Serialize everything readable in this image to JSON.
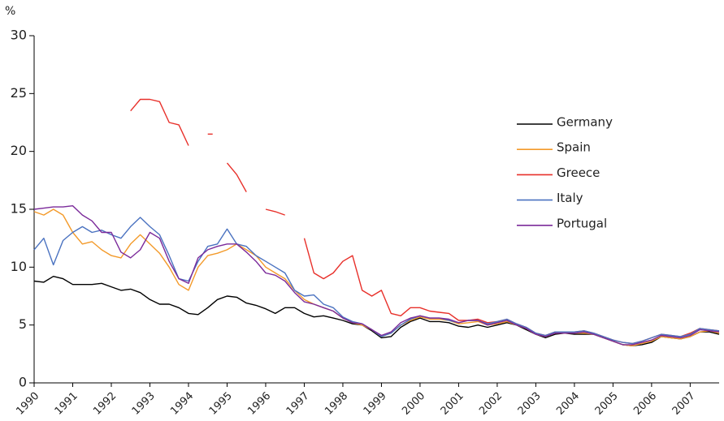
{
  "chart_data": {
    "type": "line",
    "y_label": "%",
    "x": [
      1990,
      1990.25,
      1990.5,
      1990.75,
      1991,
      1991.25,
      1991.5,
      1991.75,
      1992,
      1992.25,
      1992.5,
      1992.75,
      1993,
      1993.25,
      1993.5,
      1993.75,
      1994,
      1994.25,
      1994.5,
      1994.75,
      1995,
      1995.25,
      1995.5,
      1995.75,
      1996,
      1996.25,
      1996.5,
      1996.75,
      1997,
      1997.25,
      1997.5,
      1997.75,
      1998,
      1998.25,
      1998.5,
      1998.75,
      1999,
      1999.25,
      1999.5,
      1999.75,
      2000,
      2000.25,
      2000.5,
      2000.75,
      2001,
      2001.25,
      2001.5,
      2001.75,
      2002,
      2002.25,
      2002.5,
      2002.75,
      2003,
      2003.25,
      2003.5,
      2003.75,
      2004,
      2004.25,
      2004.5,
      2004.75,
      2005,
      2005.25,
      2005.5,
      2005.75,
      2006,
      2006.25,
      2006.5,
      2006.75,
      2007,
      2007.25,
      2007.5,
      2007.75
    ],
    "series": [
      {
        "name": "Germany",
        "color": "#000000",
        "values": [
          8.8,
          8.7,
          9.2,
          9.0,
          8.5,
          8.5,
          8.5,
          8.6,
          8.3,
          8.0,
          8.1,
          7.8,
          7.2,
          6.8,
          6.8,
          6.5,
          6.0,
          5.9,
          6.5,
          7.2,
          7.5,
          7.4,
          6.9,
          6.7,
          6.4,
          6.0,
          6.5,
          6.5,
          6.0,
          5.7,
          5.8,
          5.6,
          5.4,
          5.1,
          5.0,
          4.5,
          3.9,
          4.0,
          4.8,
          5.3,
          5.6,
          5.3,
          5.3,
          5.2,
          4.9,
          4.8,
          5.0,
          4.8,
          5.0,
          5.2,
          5.0,
          4.6,
          4.2,
          3.9,
          4.2,
          4.3,
          4.2,
          4.2,
          4.2,
          3.9,
          3.6,
          3.3,
          3.2,
          3.3,
          3.5,
          4.0,
          3.9,
          3.8,
          4.0,
          4.4,
          4.4,
          4.2
        ]
      },
      {
        "name": "Spain",
        "color": "#f39a2a",
        "values": [
          14.8,
          14.5,
          15.0,
          14.5,
          13.0,
          12.0,
          12.2,
          11.5,
          11.0,
          10.8,
          12.0,
          12.8,
          12.0,
          11.2,
          10.0,
          8.5,
          8.0,
          10.0,
          11.0,
          11.2,
          11.5,
          12.0,
          11.5,
          11.0,
          10.0,
          9.5,
          9.0,
          8.0,
          7.2,
          6.8,
          6.5,
          6.2,
          5.6,
          5.2,
          5.0,
          4.6,
          4.0,
          4.3,
          5.0,
          5.4,
          5.7,
          5.5,
          5.5,
          5.4,
          5.1,
          5.2,
          5.3,
          5.0,
          5.1,
          5.3,
          5.0,
          4.7,
          4.2,
          4.0,
          4.3,
          4.3,
          4.3,
          4.3,
          4.2,
          3.9,
          3.6,
          3.3,
          3.2,
          3.4,
          3.6,
          4.0,
          3.9,
          3.8,
          4.0,
          4.4,
          4.5,
          4.3
        ]
      },
      {
        "name": "Greece",
        "color": "#e8302a",
        "values": [
          null,
          null,
          null,
          null,
          null,
          null,
          null,
          null,
          null,
          null,
          23.5,
          24.5,
          24.5,
          24.3,
          22.5,
          22.3,
          20.5,
          null,
          21.5,
          null,
          19.0,
          18.0,
          16.5,
          null,
          15.0,
          14.8,
          14.5,
          null,
          12.5,
          9.5,
          9.0,
          9.5,
          10.5,
          11.0,
          8.0,
          7.5,
          8.0,
          6.0,
          5.8,
          6.5,
          6.5,
          6.2,
          6.1,
          6.0,
          5.4,
          5.4,
          5.5,
          5.2,
          5.3,
          5.5,
          5.1,
          4.8,
          4.3,
          4.1,
          4.4,
          4.4,
          4.4,
          4.5,
          4.3,
          4.0,
          3.7,
          3.5,
          3.4,
          3.6,
          3.9,
          4.2,
          4.1,
          4.0,
          4.3,
          4.7,
          4.6,
          4.5
        ]
      },
      {
        "name": "Italy",
        "color": "#4a72c0",
        "values": [
          11.5,
          12.5,
          10.2,
          12.3,
          13.0,
          13.5,
          13.0,
          13.2,
          12.8,
          12.5,
          13.5,
          14.3,
          13.5,
          12.8,
          11.0,
          9.0,
          8.8,
          10.5,
          11.8,
          12.0,
          13.3,
          12.0,
          11.8,
          11.0,
          10.5,
          10.0,
          9.5,
          8.0,
          7.5,
          7.6,
          6.8,
          6.5,
          5.7,
          5.3,
          5.1,
          4.6,
          4.0,
          4.3,
          5.0,
          5.5,
          5.8,
          5.6,
          5.6,
          5.4,
          5.2,
          5.4,
          5.4,
          5.1,
          5.3,
          5.5,
          5.1,
          4.8,
          4.3,
          4.1,
          4.4,
          4.4,
          4.4,
          4.5,
          4.3,
          4.0,
          3.7,
          3.5,
          3.4,
          3.6,
          3.9,
          4.2,
          4.1,
          4.0,
          4.2,
          4.7,
          4.6,
          4.5
        ]
      },
      {
        "name": "Portugal",
        "color": "#7b2a9a",
        "values": [
          15.0,
          15.1,
          15.2,
          15.2,
          15.3,
          14.5,
          14.0,
          13.0,
          13.0,
          11.3,
          10.8,
          11.5,
          13.0,
          12.5,
          10.5,
          9.0,
          8.6,
          10.8,
          11.5,
          11.8,
          12.0,
          12.0,
          11.3,
          10.5,
          9.5,
          9.3,
          8.8,
          7.8,
          7.0,
          6.8,
          6.5,
          6.2,
          5.6,
          5.2,
          5.1,
          4.6,
          4.1,
          4.4,
          5.2,
          5.6,
          5.8,
          5.6,
          5.6,
          5.5,
          5.2,
          5.4,
          5.4,
          5.0,
          5.2,
          5.4,
          5.0,
          4.7,
          4.2,
          4.0,
          4.3,
          4.3,
          4.3,
          4.4,
          4.2,
          3.9,
          3.6,
          3.3,
          3.3,
          3.5,
          3.7,
          4.1,
          4.0,
          3.9,
          4.1,
          4.6,
          4.5,
          4.4
        ]
      }
    ],
    "xlim": [
      1990,
      2007.75
    ],
    "xticks": [
      1990,
      1991,
      1992,
      1993,
      1994,
      1995,
      1996,
      1997,
      1998,
      1999,
      2000,
      2001,
      2002,
      2003,
      2004,
      2005,
      2006,
      2007
    ],
    "ylim": [
      0,
      30
    ],
    "yticks": [
      0,
      5,
      10,
      15,
      20,
      25,
      30
    ],
    "legend": "upper right"
  }
}
